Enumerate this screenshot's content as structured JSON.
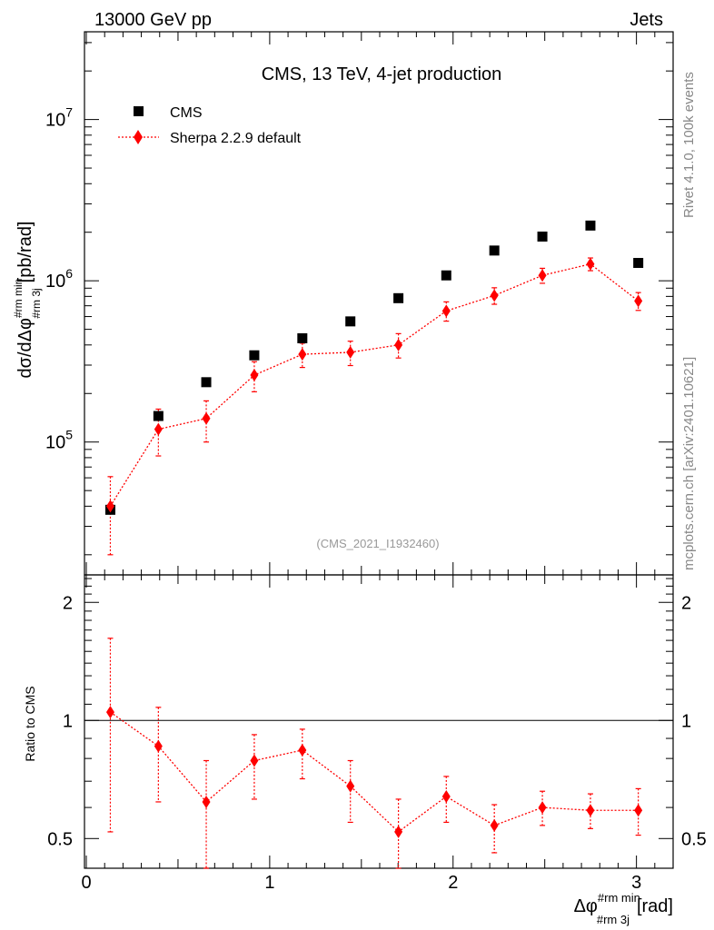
{
  "header": {
    "left": "13000 GeV pp",
    "right": "Jets",
    "title": "CMS, 13 TeV, 4-jet production",
    "analysis_id": "(CMS_2021_I1932460)",
    "side_right_top": "Rivet 4.1.0,  100k events",
    "side_right_bottom": "mcplots.cern.ch [arXiv:2401.10621]"
  },
  "legend": {
    "cms": "CMS",
    "mc": "Sherpa 2.2.9 default"
  },
  "axes": {
    "ylabel_main": "dσ/dΔφ^{#rm min}_{#rm 3j} [pb/rad]",
    "ylabel_ratio": "Ratio to CMS",
    "xlabel": "Δφ^{#rm min}_{#rm 3j} [rad]",
    "ylabel_prefix": "dσ/dΔφ",
    "ylabel_sup": "#rm min",
    "ylabel_sub": "#rm 3j",
    "ylabel_unit": "[pb/rad]",
    "xlabel_prefix": "Δφ",
    "xlabel_sup": "#rm min",
    "xlabel_sub": "#rm 3j",
    "xlabel_unit": "[rad]",
    "x_ticks": [
      "0",
      "1",
      "2",
      "3"
    ],
    "ratio_ticks": [
      "0.5",
      "1",
      "2"
    ]
  },
  "chart_data": {
    "type": "scatter",
    "title": "CMS, 13 TeV, 4-jet production",
    "xlabel": "Δφ^{#rm min}_{#rm 3j} [rad]",
    "ylabel": "dσ/dΔφ^{#rm min}_{#rm 3j} [pb/rad]",
    "xlim": [
      -0.01,
      3.2
    ],
    "ylim": [
      15000,
      35000000
    ],
    "yscale": "log",
    "ratio_ylim": [
      0.42,
      2.35
    ],
    "x": [
      0.131,
      0.393,
      0.654,
      0.916,
      1.178,
      1.44,
      1.702,
      1.963,
      2.225,
      2.487,
      2.749,
      3.01
    ],
    "series": [
      {
        "name": "CMS",
        "marker": "square",
        "values": [
          38000,
          145000,
          235000,
          345000,
          440000,
          560000,
          780000,
          1080000,
          1540000,
          1880000,
          2200000,
          1290000
        ]
      },
      {
        "name": "Sherpa 2.2.9 default",
        "marker": "diamond",
        "line": "dotted",
        "values": [
          40000,
          120000,
          140000,
          260000,
          350000,
          360000,
          400000,
          650000,
          810000,
          1080000,
          1270000,
          750000
        ],
        "err_low": [
          20000,
          38000,
          40000,
          55000,
          60000,
          62000,
          68000,
          88000,
          95000,
          115000,
          115000,
          95000
        ],
        "err_high": [
          21000,
          40000,
          40000,
          55000,
          60000,
          62000,
          70000,
          90000,
          95000,
          115000,
          115000,
          95000
        ],
        "ratio": [
          1.05,
          0.86,
          0.62,
          0.79,
          0.84,
          0.68,
          0.52,
          0.64,
          0.54,
          0.6,
          0.59,
          0.59
        ],
        "ratio_err_low": [
          0.53,
          0.24,
          0.22,
          0.16,
          0.13,
          0.13,
          0.12,
          0.09,
          0.08,
          0.06,
          0.06,
          0.08
        ],
        "ratio_err_high": [
          0.57,
          0.22,
          0.17,
          0.13,
          0.11,
          0.11,
          0.11,
          0.08,
          0.07,
          0.06,
          0.06,
          0.08
        ]
      }
    ],
    "colors": {
      "cms": "#000000",
      "mc": "#ff0000"
    }
  }
}
